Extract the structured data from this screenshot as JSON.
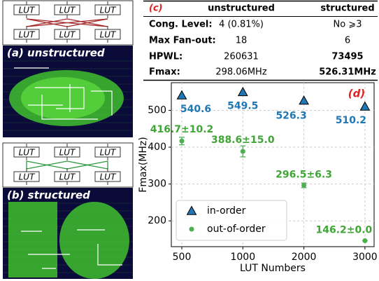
{
  "panels": [
    {
      "label": "(a) unstructured",
      "luts": [
        "LUT",
        "LUT",
        "LUT",
        "LUT",
        "LUT",
        "LUT"
      ],
      "wire_color": "#a52a2a"
    },
    {
      "label": "(b) structured",
      "luts": [
        "LUT",
        "LUT",
        "LUT",
        "LUT",
        "LUT",
        "LUT"
      ],
      "wire_color": "#2e9a3e"
    }
  ],
  "table": {
    "label": "(c)",
    "header": [
      "unstructured",
      "structured"
    ],
    "rows": [
      [
        "Cong. Level:",
        "4 (0.81%)",
        "No ⩾3"
      ],
      [
        "Max Fan-out:",
        "18",
        "6"
      ],
      [
        "HPWL:",
        "260631",
        "73495"
      ],
      [
        "Fmax:",
        "298.06MHz",
        "526.31MHz"
      ]
    ]
  },
  "chart_data": {
    "type": "scatter",
    "label": "(d)",
    "xlabel": "LUT Numbers",
    "ylabel": "Fmax(MHz)",
    "categories": [
      "500",
      "1000",
      "2000",
      "3000"
    ],
    "ylim": [
      130,
      575
    ],
    "yticks": [
      200,
      300,
      400,
      500
    ],
    "grid": true,
    "legend": "lower left",
    "series": [
      {
        "name": "in-order",
        "color": "#1f77b4",
        "marker": "triangle",
        "values": [
          540.6,
          549.5,
          526.3,
          510.2
        ]
      },
      {
        "name": "out-of-order",
        "color": "#4caf50",
        "marker": "circle",
        "values": [
          416.7,
          388.6,
          296.5,
          146.2
        ],
        "errors": [
          10.2,
          15.0,
          6.3,
          0.0
        ],
        "value_labels": [
          "416.7±10.2",
          "388.6±15.0",
          "296.5±6.3",
          "146.2±0.0"
        ]
      }
    ]
  }
}
